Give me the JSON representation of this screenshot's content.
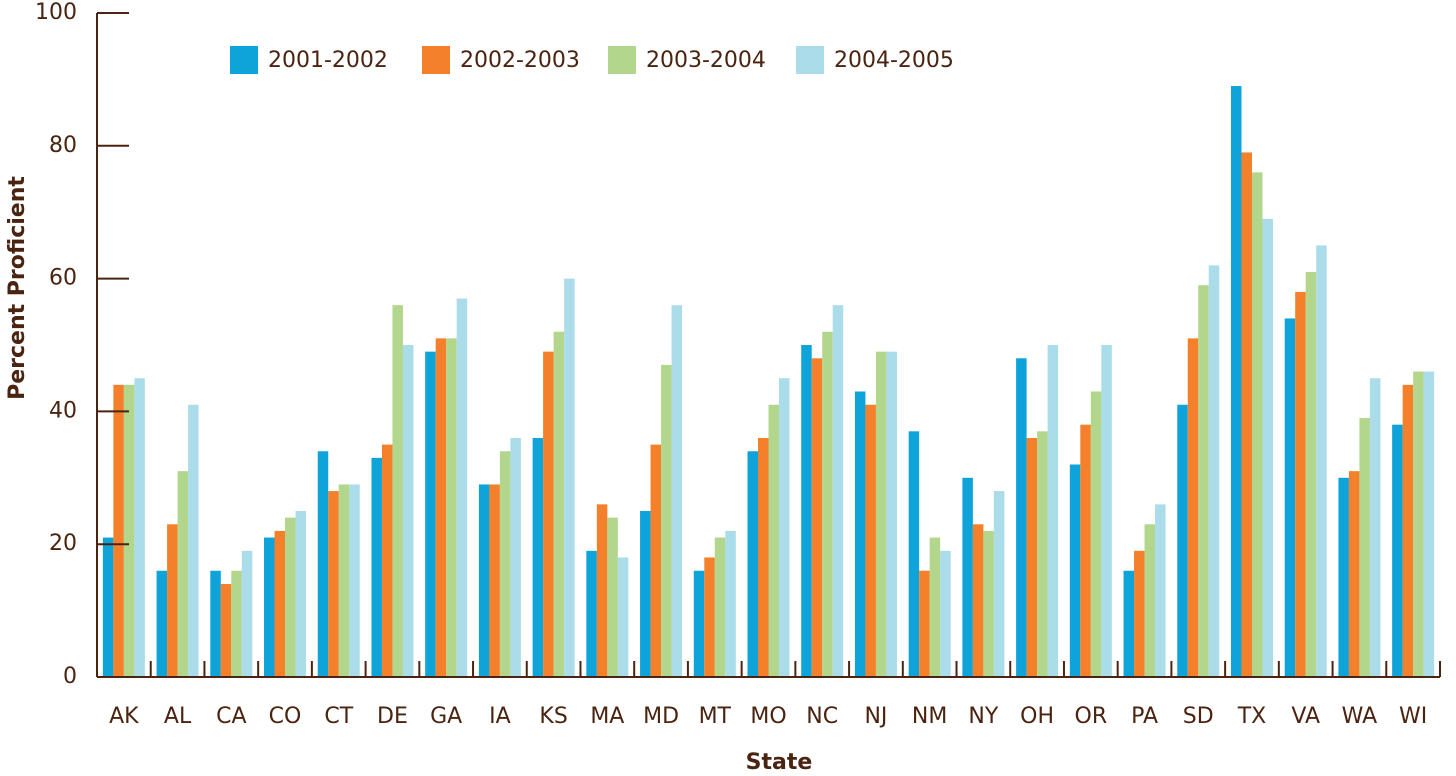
{
  "chart_data": {
    "type": "bar",
    "x_label": "State",
    "y_label": "Percent Proficient",
    "categories": [
      "AK",
      "AL",
      "CA",
      "CO",
      "CT",
      "DE",
      "GA",
      "IA",
      "KS",
      "MA",
      "MD",
      "MT",
      "MO",
      "NC",
      "NJ",
      "NM",
      "NY",
      "OH",
      "OR",
      "PA",
      "SD",
      "TX",
      "VA",
      "WA",
      "WI"
    ],
    "series": [
      {
        "name": "2001-2002",
        "color": "#0ea3d9",
        "values": [
          21,
          16,
          16,
          21,
          34,
          33,
          49,
          29,
          36,
          19,
          25,
          16,
          34,
          50,
          43,
          37,
          30,
          48,
          32,
          16,
          41,
          89,
          54,
          30,
          38
        ]
      },
      {
        "name": "2002-2003",
        "color": "#f4802b",
        "values": [
          44,
          23,
          14,
          22,
          28,
          35,
          51,
          29,
          49,
          26,
          35,
          18,
          36,
          48,
          41,
          16,
          23,
          36,
          38,
          19,
          51,
          79,
          58,
          31,
          44
        ]
      },
      {
        "name": "2003-2004",
        "color": "#b2d68c",
        "values": [
          44,
          31,
          16,
          24,
          29,
          56,
          51,
          34,
          52,
          24,
          47,
          21,
          41,
          52,
          49,
          21,
          22,
          37,
          43,
          23,
          59,
          76,
          61,
          39,
          46
        ]
      },
      {
        "name": "2004-2005",
        "color": "#aadde9",
        "values": [
          45,
          41,
          19,
          25,
          29,
          50,
          57,
          36,
          60,
          18,
          56,
          22,
          45,
          56,
          49,
          19,
          28,
          50,
          50,
          26,
          62,
          69,
          65,
          45,
          46
        ]
      }
    ],
    "ylim": [
      0,
      100
    ],
    "yticks": [
      0,
      20,
      40,
      60,
      80,
      100
    ]
  }
}
